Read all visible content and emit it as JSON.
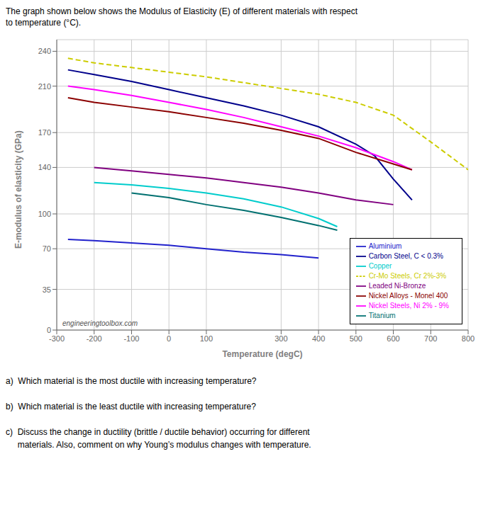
{
  "chart_data": {
    "type": "line",
    "xlabel": "Temperature (degC)",
    "ylabel": "E-modulus of elasticity (GPa)",
    "xlim": [
      -300,
      800
    ],
    "ylim": [
      0,
      250
    ],
    "xticks": [
      -300,
      -200,
      -100,
      0,
      100,
      300,
      400,
      500,
      600,
      700,
      800
    ],
    "yticks": [
      0,
      35,
      70,
      100,
      140,
      170,
      210,
      240
    ],
    "grid": true,
    "legend": "lower right",
    "series": [
      {
        "name": "Carbon Steel, C < 0.3%",
        "color": "#00008B",
        "line_style": "solid",
        "x": [
          -270,
          -200,
          -100,
          0,
          100,
          200,
          300,
          400,
          500,
          550,
          600,
          650
        ],
        "values": [
          224,
          220,
          214,
          207,
          200,
          193,
          185,
          175,
          160,
          150,
          130,
          112
        ]
      },
      {
        "name": "Nickel Steels, Ni 2% - 9%",
        "color": "#FF00FF",
        "line_style": "solid",
        "x": [
          -270,
          -200,
          -100,
          0,
          100,
          200,
          300,
          400,
          500,
          600,
          650
        ],
        "values": [
          210,
          207,
          202,
          196,
          190,
          183,
          175,
          167,
          157,
          145,
          138
        ]
      },
      {
        "name": "Cr-Mo Steels, Cr 2%-3%",
        "color": "#cccc00",
        "line_style": "dashed",
        "x": [
          -270,
          -200,
          -100,
          0,
          100,
          200,
          300,
          400,
          500,
          600,
          700,
          800
        ],
        "values": [
          234,
          230,
          226,
          222,
          218,
          213,
          208,
          203,
          196,
          185,
          162,
          138
        ]
      },
      {
        "name": "Copper",
        "color": "#00CCCC",
        "line_style": "solid",
        "x": [
          -200,
          -100,
          0,
          100,
          200,
          300,
          400,
          450
        ],
        "values": [
          127,
          125,
          122,
          118,
          113,
          106,
          96,
          89
        ]
      },
      {
        "name": "Leaded Ni-Bronze",
        "color": "#800080",
        "line_style": "solid",
        "x": [
          -200,
          -100,
          0,
          100,
          200,
          300,
          400,
          500,
          600
        ],
        "values": [
          140,
          137,
          134,
          131,
          127,
          123,
          118,
          112,
          108
        ]
      },
      {
        "name": "Nickel Alloys - Monel 400",
        "color": "#8B0000",
        "line_style": "solid",
        "x": [
          -270,
          -200,
          -100,
          0,
          100,
          200,
          300,
          400,
          500,
          600,
          650
        ],
        "values": [
          200,
          196,
          192,
          188,
          183,
          178,
          172,
          165,
          153,
          143,
          138
        ]
      },
      {
        "name": "Titanium",
        "color": "#007070",
        "line_style": "solid",
        "x": [
          -100,
          0,
          100,
          200,
          300,
          400,
          450
        ],
        "values": [
          118,
          114,
          108,
          103,
          97,
          90,
          86
        ]
      },
      {
        "name": "Aluminium",
        "color": "#2222cc",
        "line_style": "solid",
        "x": [
          -270,
          -200,
          -100,
          0,
          100,
          200,
          300,
          400
        ],
        "values": [
          78,
          77,
          75,
          73,
          70,
          67,
          65,
          62
        ]
      }
    ],
    "annotations": {
      "header": [
        "The graph shown below shows the Modulus of Elasticity (E) of different materials with respect",
        "to temperature (°C)."
      ],
      "questions": [
        "a)  Which material is the most ductile with increasing temperature?",
        "b)  Which material is the least ductile with increasing temperature?",
        "c)  Discuss the change in ductility (brittle / ductile behavior) occurring for different",
        "     materials. Also, comment on why Young’s modulus changes with temperature."
      ],
      "watermark": "engineeringtoolbox.com"
    }
  }
}
